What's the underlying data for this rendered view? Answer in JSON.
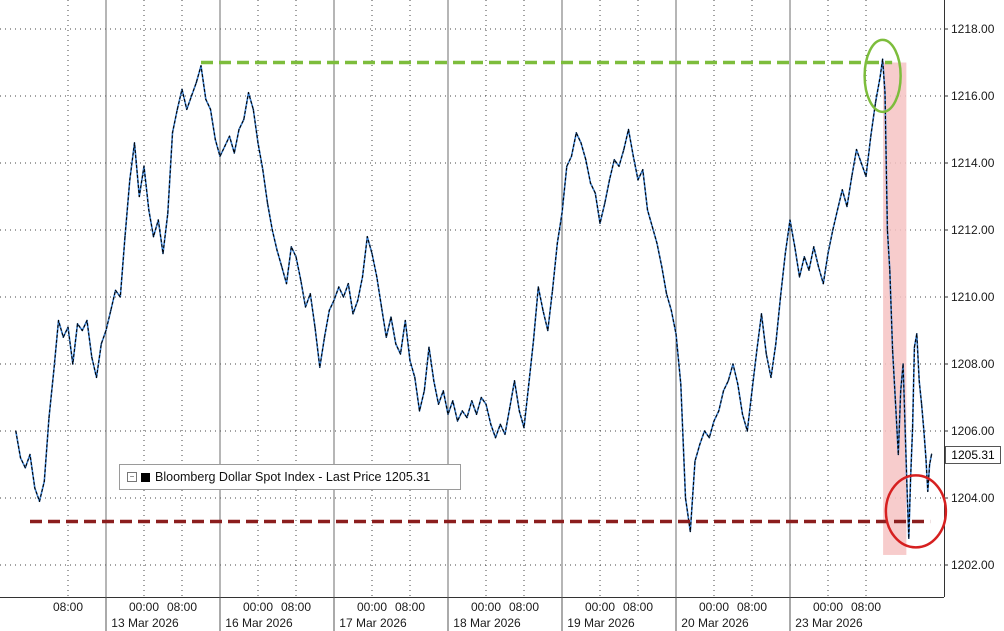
{
  "colors": {
    "line_dark": "#000000",
    "line_blue": "#3a7fd0",
    "resistance": "#7dbd3c",
    "support": "#8b1e1e",
    "shade": "#f6c3c3",
    "circle_top": "#7dbd3c",
    "circle_bottom": "#d62020",
    "grid": "#444444"
  },
  "legend": {
    "label": "Bloomberg Dollar Spot Index - Last Price 1205.31"
  },
  "last_price_tag": "1205.31",
  "chart_data": {
    "type": "line",
    "title": "",
    "xlabel": "",
    "ylabel": "",
    "ylim": [
      1201,
      1219
    ],
    "yticks": [
      {
        "v": 1202,
        "label": "1202.00"
      },
      {
        "v": 1204,
        "label": "1204.00"
      },
      {
        "v": 1206,
        "label": "1206.00"
      },
      {
        "v": 1208,
        "label": "1208.00"
      },
      {
        "v": 1210,
        "label": "1210.00"
      },
      {
        "v": 1212,
        "label": "1212.00"
      },
      {
        "v": 1214,
        "label": "1214.00"
      },
      {
        "v": 1216,
        "label": "1216.00"
      },
      {
        "v": 1218,
        "label": "1218.00"
      }
    ],
    "xlim": [
      -3,
      186
    ],
    "x_unit": "hours from 12 Mar 2026 00:00 (timestamp axis)",
    "xticks": [
      {
        "x": 8,
        "label": "08:00",
        "date": ""
      },
      {
        "x": 24,
        "label": "00:00",
        "date": "13 Mar 2026"
      },
      {
        "x": 32,
        "label": "08:00",
        "date": ""
      },
      {
        "x": 48,
        "label": "00:00",
        "date": "16 Mar 2026"
      },
      {
        "x": 56,
        "label": "08:00",
        "date": ""
      },
      {
        "x": 72,
        "label": "00:00",
        "date": "17 Mar 2026"
      },
      {
        "x": 80,
        "label": "08:00",
        "date": ""
      },
      {
        "x": 96,
        "label": "00:00",
        "date": "18 Mar 2026"
      },
      {
        "x": 104,
        "label": "08:00",
        "date": ""
      },
      {
        "x": 120,
        "label": "00:00",
        "date": "19 Mar 2026"
      },
      {
        "x": 128,
        "label": "08:00",
        "date": ""
      },
      {
        "x": 144,
        "label": "00:00",
        "date": "20 Mar 2026"
      },
      {
        "x": 152,
        "label": "08:00",
        "date": ""
      },
      {
        "x": 168,
        "label": "00:00",
        "date": "23 Mar 2026"
      },
      {
        "x": 176,
        "label": "08:00",
        "date": ""
      }
    ],
    "day_separators": [
      16,
      40,
      64,
      88,
      112,
      136,
      160
    ],
    "series": [
      {
        "points": [
          [
            -3,
            1206.0
          ],
          [
            -2,
            1205.2
          ],
          [
            -1,
            1204.9
          ],
          [
            0,
            1205.3
          ],
          [
            1,
            1204.3
          ],
          [
            2,
            1203.9
          ],
          [
            3,
            1204.5
          ],
          [
            4,
            1206.4
          ],
          [
            5,
            1207.8
          ],
          [
            6,
            1209.3
          ],
          [
            7,
            1208.8
          ],
          [
            8,
            1209.1
          ],
          [
            9,
            1208.0
          ],
          [
            10,
            1209.2
          ],
          [
            11,
            1209.0
          ],
          [
            12,
            1209.3
          ],
          [
            13,
            1208.2
          ],
          [
            14,
            1207.6
          ],
          [
            15,
            1208.6
          ],
          [
            16,
            1209.0
          ],
          [
            17,
            1209.6
          ],
          [
            18,
            1210.2
          ],
          [
            19,
            1210.0
          ],
          [
            20,
            1211.8
          ],
          [
            21,
            1213.5
          ],
          [
            22,
            1214.6
          ],
          [
            23,
            1213.0
          ],
          [
            24,
            1213.9
          ],
          [
            25,
            1212.6
          ],
          [
            26,
            1211.8
          ],
          [
            27,
            1212.3
          ],
          [
            28,
            1211.3
          ],
          [
            29,
            1212.5
          ],
          [
            30,
            1214.9
          ],
          [
            31,
            1215.6
          ],
          [
            32,
            1216.2
          ],
          [
            33,
            1215.6
          ],
          [
            34,
            1216.0
          ],
          [
            35,
            1216.4
          ],
          [
            36,
            1216.9
          ],
          [
            37,
            1215.9
          ],
          [
            38,
            1215.6
          ],
          [
            39,
            1214.7
          ],
          [
            40,
            1214.2
          ],
          [
            41,
            1214.5
          ],
          [
            42,
            1214.8
          ],
          [
            43,
            1214.3
          ],
          [
            44,
            1215.0
          ],
          [
            45,
            1215.3
          ],
          [
            46,
            1216.1
          ],
          [
            47,
            1215.6
          ],
          [
            48,
            1214.6
          ],
          [
            49,
            1213.8
          ],
          [
            50,
            1212.8
          ],
          [
            51,
            1212.0
          ],
          [
            52,
            1211.4
          ],
          [
            53,
            1210.9
          ],
          [
            54,
            1210.4
          ],
          [
            55,
            1211.5
          ],
          [
            56,
            1211.2
          ],
          [
            57,
            1210.5
          ],
          [
            58,
            1209.7
          ],
          [
            59,
            1210.1
          ],
          [
            60,
            1209.1
          ],
          [
            61,
            1207.9
          ],
          [
            62,
            1208.8
          ],
          [
            63,
            1209.6
          ],
          [
            64,
            1209.9
          ],
          [
            65,
            1210.3
          ],
          [
            66,
            1210.0
          ],
          [
            67,
            1210.4
          ],
          [
            68,
            1209.5
          ],
          [
            69,
            1209.9
          ],
          [
            70,
            1210.6
          ],
          [
            71,
            1211.8
          ],
          [
            72,
            1211.3
          ],
          [
            73,
            1210.6
          ],
          [
            74,
            1209.7
          ],
          [
            75,
            1208.8
          ],
          [
            76,
            1209.4
          ],
          [
            77,
            1208.6
          ],
          [
            78,
            1208.3
          ],
          [
            79,
            1209.3
          ],
          [
            80,
            1208.1
          ],
          [
            81,
            1207.6
          ],
          [
            82,
            1206.6
          ],
          [
            83,
            1207.2
          ],
          [
            84,
            1208.5
          ],
          [
            85,
            1207.5
          ],
          [
            86,
            1206.8
          ],
          [
            87,
            1207.2
          ],
          [
            88,
            1206.5
          ],
          [
            89,
            1206.9
          ],
          [
            90,
            1206.3
          ],
          [
            91,
            1206.6
          ],
          [
            92,
            1206.4
          ],
          [
            93,
            1206.9
          ],
          [
            94,
            1206.5
          ],
          [
            95,
            1207.0
          ],
          [
            96,
            1206.8
          ],
          [
            97,
            1206.2
          ],
          [
            98,
            1205.8
          ],
          [
            99,
            1206.2
          ],
          [
            100,
            1205.9
          ],
          [
            101,
            1206.7
          ],
          [
            102,
            1207.5
          ],
          [
            103,
            1206.6
          ],
          [
            104,
            1206.1
          ],
          [
            105,
            1207.4
          ],
          [
            106,
            1208.7
          ],
          [
            107,
            1210.3
          ],
          [
            108,
            1209.6
          ],
          [
            109,
            1209.0
          ],
          [
            110,
            1210.2
          ],
          [
            111,
            1211.6
          ],
          [
            112,
            1212.5
          ],
          [
            113,
            1213.9
          ],
          [
            114,
            1214.2
          ],
          [
            115,
            1214.9
          ],
          [
            116,
            1214.6
          ],
          [
            117,
            1214.1
          ],
          [
            118,
            1213.4
          ],
          [
            119,
            1213.1
          ],
          [
            120,
            1212.2
          ],
          [
            121,
            1212.8
          ],
          [
            122,
            1213.5
          ],
          [
            123,
            1214.1
          ],
          [
            124,
            1213.9
          ],
          [
            125,
            1214.4
          ],
          [
            126,
            1215.0
          ],
          [
            127,
            1214.2
          ],
          [
            128,
            1213.5
          ],
          [
            129,
            1213.8
          ],
          [
            130,
            1212.6
          ],
          [
            131,
            1212.1
          ],
          [
            132,
            1211.6
          ],
          [
            133,
            1210.9
          ],
          [
            134,
            1210.1
          ],
          [
            135,
            1209.6
          ],
          [
            136,
            1208.9
          ],
          [
            137,
            1207.4
          ],
          [
            138,
            1204.0
          ],
          [
            139,
            1203.0
          ],
          [
            140,
            1205.1
          ],
          [
            141,
            1205.6
          ],
          [
            142,
            1206.0
          ],
          [
            143,
            1205.8
          ],
          [
            144,
            1206.3
          ],
          [
            145,
            1206.6
          ],
          [
            146,
            1207.2
          ],
          [
            147,
            1207.5
          ],
          [
            148,
            1208.0
          ],
          [
            149,
            1207.4
          ],
          [
            150,
            1206.5
          ],
          [
            151,
            1206.0
          ],
          [
            152,
            1207.2
          ],
          [
            153,
            1208.4
          ],
          [
            154,
            1209.5
          ],
          [
            155,
            1208.3
          ],
          [
            156,
            1207.6
          ],
          [
            157,
            1208.6
          ],
          [
            158,
            1210.0
          ],
          [
            159,
            1211.3
          ],
          [
            160,
            1212.3
          ],
          [
            161,
            1211.5
          ],
          [
            162,
            1210.6
          ],
          [
            163,
            1211.2
          ],
          [
            164,
            1210.8
          ],
          [
            165,
            1211.5
          ],
          [
            166,
            1210.9
          ],
          [
            167,
            1210.4
          ],
          [
            168,
            1211.3
          ],
          [
            169,
            1212.0
          ],
          [
            170,
            1212.6
          ],
          [
            171,
            1213.2
          ],
          [
            172,
            1212.7
          ],
          [
            173,
            1213.6
          ],
          [
            174,
            1214.4
          ],
          [
            175,
            1214.0
          ],
          [
            176,
            1213.6
          ],
          [
            177,
            1214.8
          ],
          [
            178,
            1215.8
          ],
          [
            179,
            1216.6
          ],
          [
            179.5,
            1217.1
          ],
          [
            180,
            1216.1
          ],
          [
            180.5,
            1212.0
          ],
          [
            181,
            1210.8
          ],
          [
            181.6,
            1208.4
          ],
          [
            182.2,
            1206.9
          ],
          [
            182.8,
            1205.3
          ],
          [
            183.3,
            1207.2
          ],
          [
            183.8,
            1208.0
          ],
          [
            184.2,
            1206.3
          ],
          [
            184.6,
            1204.4
          ],
          [
            185,
            1202.8
          ],
          [
            185.4,
            1204.6
          ],
          [
            185.8,
            1206.1
          ],
          [
            186.2,
            1208.5
          ],
          [
            186.7,
            1208.9
          ],
          [
            187.2,
            1207.5
          ],
          [
            187.7,
            1206.8
          ],
          [
            188.2,
            1206.0
          ],
          [
            188.6,
            1205.2
          ],
          [
            189,
            1204.2
          ],
          [
            189.4,
            1205.0
          ],
          [
            189.8,
            1205.31
          ]
        ]
      }
    ],
    "annotations": {
      "resistance_level": 1217.0,
      "support_level": 1203.3,
      "shade_x_start": 179.6,
      "shade_x_end": 184.5
    }
  }
}
